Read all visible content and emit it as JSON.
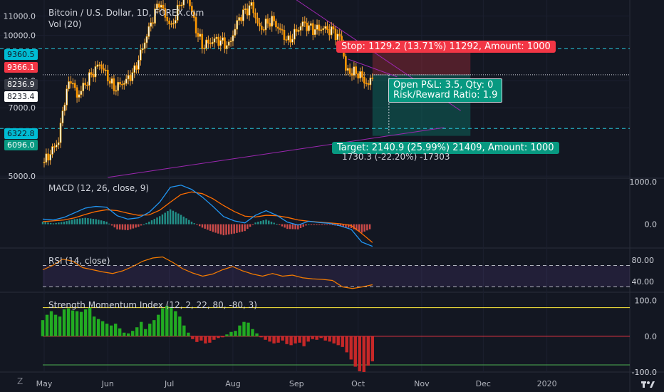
{
  "header": {
    "symbol": "Bitcoin / U.S. Dollar, 1D, FOREX.com",
    "volume": "Vol (20)"
  },
  "chart_data": [
    {
      "type": "candlestick",
      "title": "Bitcoin / U.S. Dollar, 1D, FOREX.com",
      "scale": "log",
      "ylim": [
        4950,
        11900
      ],
      "y_ticks": [
        5000.0,
        7000.0,
        8000.0,
        10000.0,
        11000.0
      ],
      "x_ticks": [
        "May",
        "Jun",
        "Jul",
        "Aug",
        "Sep",
        "Oct",
        "Nov",
        "Dec",
        "2020"
      ],
      "colors": {
        "up": "#f7a600",
        "down": "#ff9800",
        "wick": "#f0a23b"
      },
      "close_path_estimate": [
        [
          "2019-05-01",
          5350
        ],
        [
          "2019-05-08",
          5950
        ],
        [
          "2019-05-11",
          7300
        ],
        [
          "2019-05-14",
          8100
        ],
        [
          "2019-05-17",
          7400
        ],
        [
          "2019-05-22",
          8000
        ],
        [
          "2019-05-28",
          8700
        ],
        [
          "2019-06-04",
          7700
        ],
        [
          "2019-06-10",
          8000
        ],
        [
          "2019-06-14",
          8400
        ],
        [
          "2019-06-18",
          9400
        ],
        [
          "2019-06-22",
          10600
        ],
        [
          "2019-06-26",
          11800
        ],
        [
          "2019-06-29",
          11000
        ],
        [
          "2019-07-02",
          10400
        ],
        [
          "2019-07-09",
          12500
        ],
        [
          "2019-07-14",
          10300
        ],
        [
          "2019-07-17",
          9500
        ],
        [
          "2019-07-24",
          9800
        ],
        [
          "2019-07-30",
          9500
        ],
        [
          "2019-08-04",
          10900
        ],
        [
          "2019-08-10",
          11600
        ],
        [
          "2019-08-14",
          10300
        ],
        [
          "2019-08-20",
          10800
        ],
        [
          "2019-08-28",
          9700
        ],
        [
          "2019-09-04",
          10600
        ],
        [
          "2019-09-09",
          10300
        ],
        [
          "2019-09-14",
          10350
        ],
        [
          "2019-09-19",
          10200
        ],
        [
          "2019-09-23",
          9700
        ],
        [
          "2019-09-25",
          8400
        ],
        [
          "2019-10-01",
          8300
        ],
        [
          "2019-10-06",
          7800
        ],
        [
          "2019-10-08",
          8234
        ]
      ],
      "price_labels": [
        {
          "value": "9360.5",
          "bg": "#00bcd4",
          "fg": "#131722"
        },
        {
          "value": "9366.1",
          "bg": "#f23645",
          "fg": "#ffffff"
        },
        {
          "value": "8236.9",
          "bg": "#363a45",
          "fg": "#ffffff"
        },
        {
          "value": "8233.4",
          "bg": "#ffffff",
          "fg": "#131722"
        },
        {
          "value": "6322.8",
          "bg": "#00bcd4",
          "fg": "#131722"
        },
        {
          "value": "6096.0",
          "bg": "#089981",
          "fg": "#ffffff"
        }
      ],
      "position": {
        "stop_label": "Stop: 1129.2 (13.71%) 11292, Amount: 1000",
        "target_label": "Target: 2140.9 (25.99%) 21409, Amount: 1000",
        "open_pnl": "Open P&L: 3.5, Qty: 0",
        "risk_reward": "Risk/Reward Ratio: 1.9",
        "stop_price": 9366.1,
        "entry_price": 8233.4,
        "target_price": 6096.0,
        "stop_color": "#f23645",
        "target_color": "#089981"
      },
      "horizontal_levels": [
        9360.5,
        6322.8
      ],
      "trend_lines_color": "#9c27b0",
      "partial_hidden_label": "1730.3 (-22.20%) -17303"
    },
    {
      "type": "line+histogram",
      "title": "MACD (12, 26, close, 9)",
      "ylim": [
        -560,
        1050
      ],
      "y_ticks": [
        1000.0,
        0.0
      ],
      "macd_line_color": "#2196f3",
      "signal_line_color": "#ff6d00",
      "macd_estimate": [
        120,
        100,
        160,
        270,
        380,
        420,
        400,
        200,
        120,
        150,
        280,
        520,
        870,
        920,
        820,
        640,
        420,
        180,
        80,
        30,
        210,
        320,
        210,
        50,
        -20,
        70,
        40,
        20,
        -40,
        -120,
        -420,
        -520
      ],
      "signal_estimate": [
        60,
        80,
        100,
        150,
        230,
        300,
        340,
        320,
        260,
        210,
        220,
        330,
        520,
        700,
        760,
        720,
        600,
        440,
        300,
        190,
        170,
        210,
        200,
        160,
        100,
        70,
        50,
        30,
        10,
        -30,
        -220,
        -430
      ],
      "histogram_estimate": [
        60,
        20,
        60,
        120,
        150,
        120,
        60,
        -120,
        -140,
        -60,
        60,
        190,
        350,
        220,
        60,
        -80,
        -180,
        -260,
        -220,
        -160,
        40,
        110,
        10,
        -110,
        -120,
        0,
        -10,
        -10,
        -50,
        -90,
        -200,
        -90
      ]
    },
    {
      "type": "line",
      "title": "RSI (14, close)",
      "ylim": [
        20,
        100
      ],
      "y_ticks": [
        80.0,
        40.0
      ],
      "bands": [
        70,
        30
      ],
      "line_color": "#f57c00",
      "rsi_estimate": [
        62,
        70,
        82,
        78,
        66,
        62,
        58,
        55,
        60,
        68,
        78,
        84,
        86,
        76,
        64,
        56,
        50,
        54,
        62,
        68,
        60,
        54,
        50,
        55,
        50,
        52,
        47,
        45,
        44,
        42,
        30,
        27,
        30,
        34
      ]
    },
    {
      "type": "histogram",
      "title": "Strength Momentum Index (12, 2, 22, 80, -80, 3)",
      "ylim": [
        -100,
        115
      ],
      "y_ticks": [
        100.0,
        0.0,
        -100.0
      ],
      "levels": [
        80,
        0,
        -80
      ],
      "level_colors": [
        "#ffeb3b",
        "#f23645",
        "#4caf50"
      ],
      "pos_color": "#22ab22",
      "neg_color": "#c62828",
      "smi_estimate": [
        45,
        60,
        70,
        60,
        55,
        75,
        78,
        72,
        70,
        68,
        75,
        80,
        55,
        48,
        42,
        35,
        30,
        35,
        22,
        10,
        8,
        15,
        25,
        40,
        20,
        35,
        45,
        60,
        78,
        85,
        82,
        70,
        55,
        30,
        10,
        -8,
        -16,
        -12,
        -20,
        -18,
        -10,
        -5,
        -3,
        5,
        12,
        15,
        30,
        40,
        38,
        20,
        8,
        -3,
        -10,
        -15,
        -20,
        -18,
        -12,
        -22,
        -25,
        -20,
        -18,
        -28,
        -15,
        -8,
        -10,
        -5,
        -12,
        -15,
        -20,
        -25,
        -30,
        -45,
        -65,
        -85,
        -98,
        -100,
        -82,
        -70
      ]
    },
    {
      "type": "axis",
      "x_ticks": [
        "May",
        "Jun",
        "Jul",
        "Aug",
        "Sep",
        "Oct",
        "Nov",
        "Dec",
        "2020"
      ]
    }
  ],
  "icons": {
    "timezone": "Z",
    "logo": "tradingview-logo"
  }
}
